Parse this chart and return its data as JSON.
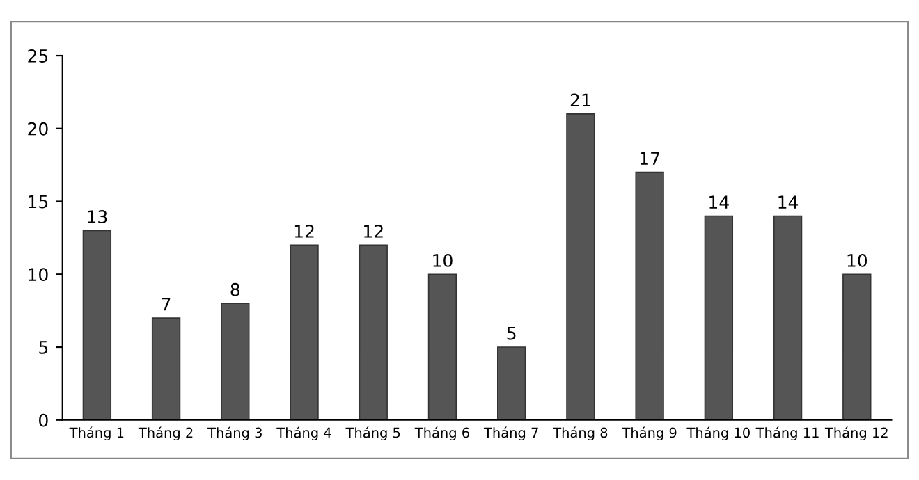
{
  "chart_data": {
    "type": "bar",
    "categories": [
      "Tháng 1",
      "Tháng 2",
      "Tháng 3",
      "Tháng 4",
      "Tháng 5",
      "Tháng 6",
      "Tháng 7",
      "Tháng 8",
      "Tháng 9",
      "Tháng 10",
      "Tháng 11",
      "Tháng 12"
    ],
    "values": [
      13,
      7,
      8,
      12,
      12,
      10,
      5,
      21,
      17,
      14,
      14,
      10
    ],
    "color": "#555555",
    "ylim": [
      0,
      25
    ],
    "yticks": [
      0,
      5,
      10,
      15,
      20,
      25
    ],
    "data_labels": true,
    "grid": false,
    "legend": false
  }
}
